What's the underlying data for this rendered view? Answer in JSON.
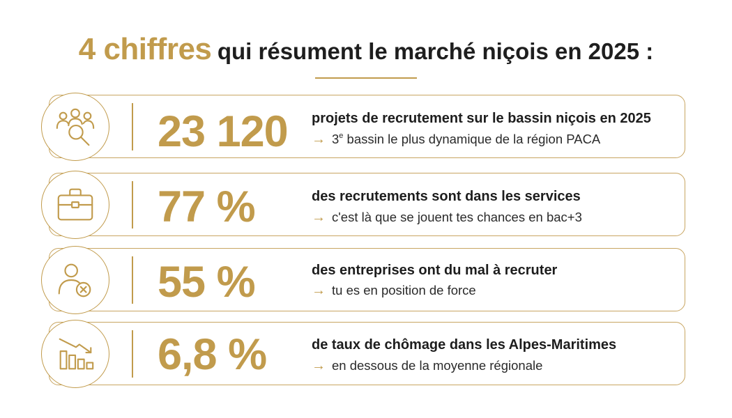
{
  "header": {
    "title_accent": "4 chiffres",
    "title_rest": "qui résument le marché niçois en 2025 :"
  },
  "stats": [
    {
      "icon": "people-search-icon",
      "value": "23 120",
      "headline": "projets de recrutement sur le bassin niçois en 2025",
      "sub_prefix": "3",
      "sub_sup": "e",
      "sub_rest": " bassin le plus dynamique de la région PACA"
    },
    {
      "icon": "briefcase-icon",
      "value": "77 %",
      "headline": "des recrutements sont dans les services",
      "sub": "c'est là que se jouent tes chances en bac+3"
    },
    {
      "icon": "user-cross-icon",
      "value": "55 %",
      "headline": "des entreprises ont du mal à recruter",
      "sub": "tu es en position de force"
    },
    {
      "icon": "declining-bar-chart-icon",
      "value": "6,8 %",
      "headline": "de taux de chômage dans les Alpes-Maritimes",
      "sub": "en dessous de la moyenne régionale"
    }
  ],
  "arrow_glyph": "→",
  "colors": {
    "gold": "#c19b4c",
    "text": "#1d1d1d"
  }
}
